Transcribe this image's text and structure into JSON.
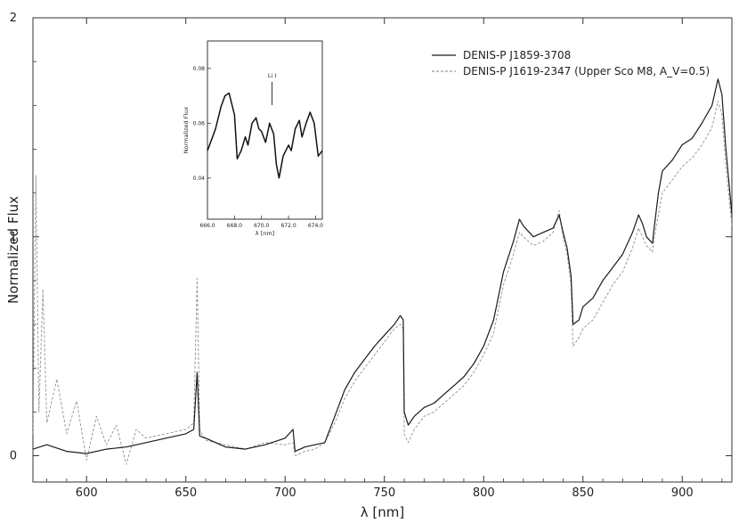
{
  "chart_data": {
    "type": "line",
    "xlabel": "λ [nm]",
    "ylabel": "Normalized Flux",
    "xlim": [
      573,
      925
    ],
    "ylim": [
      -0.12,
      2.0
    ],
    "x_ticks": [
      600,
      650,
      700,
      750,
      800,
      850,
      900
    ],
    "y_ticks": [
      0,
      1,
      2
    ],
    "legend_position": "top-right",
    "grid": false,
    "series": [
      {
        "name": "DENIS-P J1859-3708",
        "style": "solid",
        "color": "#1a1a1a",
        "x": [
          573,
          580,
          590,
          600,
          610,
          620,
          630,
          640,
          650,
          654,
          655.7,
          657,
          660,
          670,
          680,
          690,
          700,
          704,
          705,
          710,
          715,
          720,
          725,
          730,
          735,
          740,
          745,
          750,
          755,
          758,
          759.5,
          760,
          762,
          765,
          770,
          775,
          780,
          785,
          790,
          795,
          800,
          805,
          810,
          815,
          818,
          820,
          825,
          830,
          835,
          838,
          840,
          842,
          844,
          845,
          848,
          850,
          855,
          860,
          865,
          870,
          875,
          878,
          880,
          882,
          884,
          885,
          886,
          888,
          890,
          895,
          900,
          905,
          910,
          915,
          918,
          920,
          922,
          925
        ],
        "y": [
          0.03,
          0.05,
          0.02,
          0.01,
          0.03,
          0.04,
          0.06,
          0.08,
          0.1,
          0.12,
          0.38,
          0.09,
          0.08,
          0.04,
          0.03,
          0.05,
          0.08,
          0.12,
          0.02,
          0.04,
          0.05,
          0.06,
          0.18,
          0.3,
          0.38,
          0.44,
          0.5,
          0.55,
          0.6,
          0.64,
          0.62,
          0.2,
          0.14,
          0.18,
          0.22,
          0.24,
          0.28,
          0.32,
          0.36,
          0.42,
          0.5,
          0.62,
          0.84,
          0.98,
          1.08,
          1.05,
          1.0,
          1.02,
          1.04,
          1.1,
          1.02,
          0.95,
          0.82,
          0.6,
          0.62,
          0.68,
          0.72,
          0.8,
          0.86,
          0.92,
          1.02,
          1.1,
          1.06,
          1.0,
          0.98,
          0.97,
          1.05,
          1.2,
          1.3,
          1.35,
          1.42,
          1.45,
          1.52,
          1.6,
          1.72,
          1.65,
          1.4,
          1.1
        ]
      },
      {
        "name": "DENIS-P J1619-2347 (Upper Sco M8, A_V=0.5)",
        "style": "dashed",
        "color": "#9a9a9a",
        "x": [
          573,
          574.5,
          576,
          578,
          580,
          585,
          590,
          595,
          600,
          605,
          610,
          615,
          620,
          625,
          630,
          640,
          650,
          654,
          655.7,
          657,
          660,
          670,
          680,
          690,
          700,
          704,
          705,
          710,
          715,
          720,
          725,
          730,
          735,
          740,
          745,
          750,
          755,
          758,
          759.5,
          760,
          762,
          765,
          770,
          775,
          780,
          785,
          790,
          795,
          800,
          805,
          810,
          815,
          818,
          820,
          825,
          830,
          835,
          838,
          840,
          842,
          844,
          845,
          848,
          850,
          855,
          860,
          865,
          870,
          875,
          878,
          880,
          882,
          884,
          885,
          886,
          888,
          890,
          895,
          900,
          905,
          910,
          915,
          918,
          920,
          922,
          925
        ],
        "y": [
          0.1,
          1.28,
          0.2,
          0.76,
          0.15,
          0.35,
          0.1,
          0.25,
          -0.02,
          0.18,
          0.05,
          0.14,
          -0.04,
          0.12,
          0.08,
          0.1,
          0.12,
          0.15,
          0.81,
          0.12,
          0.07,
          0.05,
          0.03,
          0.06,
          0.05,
          0.06,
          0.0,
          0.02,
          0.03,
          0.06,
          0.15,
          0.26,
          0.34,
          0.4,
          0.46,
          0.52,
          0.58,
          0.6,
          0.58,
          0.1,
          0.06,
          0.12,
          0.18,
          0.2,
          0.24,
          0.28,
          0.32,
          0.38,
          0.46,
          0.56,
          0.78,
          0.92,
          1.02,
          1.0,
          0.96,
          0.98,
          1.02,
          1.12,
          1.0,
          0.92,
          0.78,
          0.5,
          0.54,
          0.58,
          0.62,
          0.7,
          0.78,
          0.84,
          0.95,
          1.04,
          1.0,
          0.96,
          0.94,
          0.93,
          1.0,
          1.1,
          1.2,
          1.26,
          1.32,
          1.36,
          1.42,
          1.5,
          1.62,
          1.56,
          1.32,
          1.05
        ]
      }
    ],
    "inset": {
      "type": "line",
      "xlabel": "λ [nm]",
      "ylabel": "Normalized Flux",
      "annotation": "Li I",
      "annotation_x": 670.78,
      "x_ticks_labels": [
        "666.0",
        "668.0",
        "670.0",
        "672.0",
        "674.0"
      ],
      "xlim": [
        666,
        674.5
      ],
      "y_ticks_labels": [
        "0.04",
        "0.06",
        "0.08"
      ],
      "ylim": [
        0.025,
        0.09
      ],
      "series": [
        {
          "name": "DENIS-P J1859-3708",
          "x": [
            666.0,
            666.3,
            666.6,
            667.0,
            667.3,
            667.6,
            668.0,
            668.2,
            668.5,
            668.8,
            669.0,
            669.3,
            669.6,
            669.8,
            670.0,
            670.3,
            670.6,
            670.9,
            671.1,
            671.3,
            671.6,
            671.8,
            672.0,
            672.2,
            672.5,
            672.8,
            673.0,
            673.3,
            673.6,
            673.9,
            674.2,
            674.5
          ],
          "y": [
            0.05,
            0.054,
            0.058,
            0.066,
            0.07,
            0.071,
            0.063,
            0.047,
            0.05,
            0.055,
            0.052,
            0.06,
            0.062,
            0.058,
            0.057,
            0.053,
            0.06,
            0.056,
            0.045,
            0.04,
            0.048,
            0.05,
            0.052,
            0.05,
            0.058,
            0.061,
            0.055,
            0.06,
            0.064,
            0.06,
            0.048,
            0.05
          ]
        }
      ]
    }
  }
}
